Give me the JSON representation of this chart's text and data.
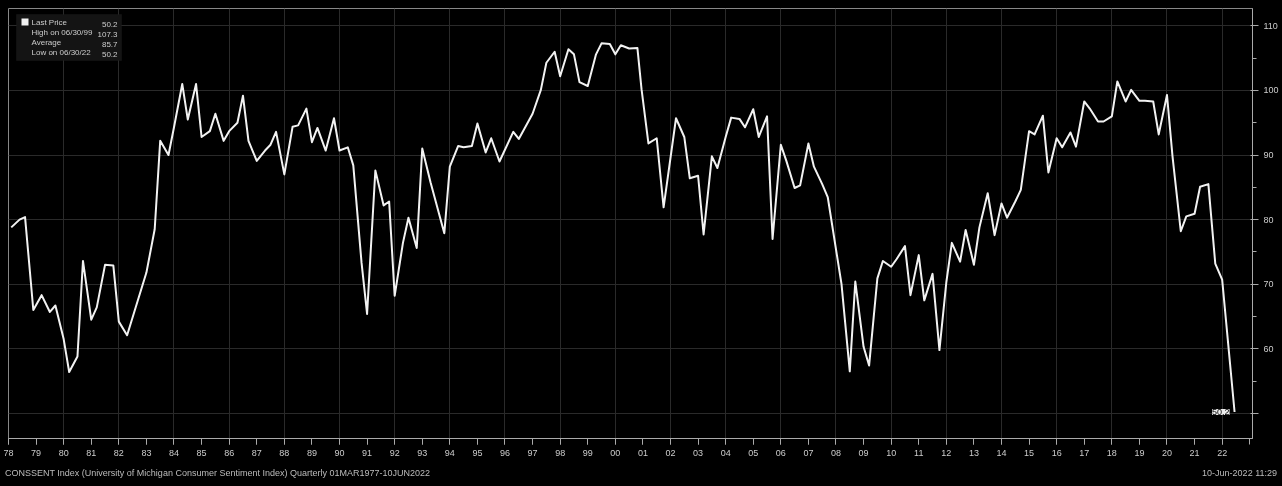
{
  "chart_data": {
    "type": "line",
    "x": [
      1978.1,
      1978.4,
      1978.6,
      1978.9,
      1979.2,
      1979.5,
      1979.7,
      1980.0,
      1980.2,
      1980.5,
      1980.7,
      1981.0,
      1981.2,
      1981.5,
      1981.8,
      1982.0,
      1982.3,
      1983.0,
      1983.3,
      1983.5,
      1983.8,
      1984.0,
      1984.3,
      1984.5,
      1984.8,
      1985.0,
      1985.3,
      1985.5,
      1985.8,
      1986.0,
      1986.3,
      1986.5,
      1986.7,
      1987.0,
      1987.3,
      1987.5,
      1987.7,
      1988.0,
      1988.3,
      1988.5,
      1988.8,
      1989.0,
      1989.2,
      1989.5,
      1989.8,
      1990.0,
      1990.3,
      1990.5,
      1990.8,
      1991.0,
      1991.3,
      1991.6,
      1991.8,
      1992.0,
      1992.3,
      1992.5,
      1992.8,
      1993.0,
      1993.3,
      1993.8,
      1994.0,
      1994.3,
      1994.5,
      1994.8,
      1995.0,
      1995.3,
      1995.5,
      1995.8,
      1996.3,
      1996.5,
      1997.0,
      1997.3,
      1997.5,
      1997.8,
      1998.0,
      1998.3,
      1998.5,
      1998.7,
      1999.0,
      1999.3,
      1999.5,
      1999.8,
      2000.0,
      2000.2,
      2000.5,
      2000.8,
      2000.95,
      2001.2,
      2001.5,
      2001.75,
      2002.2,
      2002.5,
      2002.7,
      2003.0,
      2003.2,
      2003.5,
      2003.7,
      2004.0,
      2004.2,
      2004.5,
      2004.7,
      2005.0,
      2005.2,
      2005.5,
      2005.7,
      2006.0,
      2006.2,
      2006.5,
      2006.7,
      2007.0,
      2007.2,
      2007.5,
      2007.7,
      2008.2,
      2008.5,
      2008.7,
      2009.0,
      2009.2,
      2009.5,
      2009.7,
      2010.0,
      2010.2,
      2010.5,
      2010.7,
      2011.0,
      2011.2,
      2011.5,
      2011.75,
      2012.0,
      2012.2,
      2012.5,
      2012.7,
      2013.0,
      2013.2,
      2013.5,
      2013.75,
      2014.0,
      2014.2,
      2014.5,
      2014.7,
      2015.0,
      2015.2,
      2015.5,
      2015.7,
      2016.0,
      2016.2,
      2016.5,
      2016.7,
      2017.0,
      2017.2,
      2017.5,
      2017.7,
      2018.0,
      2018.2,
      2018.5,
      2018.7,
      2019.0,
      2019.2,
      2019.5,
      2019.7,
      2020.0,
      2020.2,
      2020.5,
      2020.7,
      2021.0,
      2021.2,
      2021.5,
      2021.75,
      2022.0,
      2022.45
    ],
    "series": [
      {
        "name": "Last Price",
        "color": "#f2f2f2",
        "values": [
          78.8,
          80.0,
          80.4,
          66.0,
          68.3,
          65.7,
          66.7,
          61.5,
          56.4,
          58.8,
          73.6,
          64.5,
          66.4,
          73.0,
          72.9,
          64.2,
          62.1,
          71.8,
          78.5,
          92.2,
          90.0,
          94.3,
          101.0,
          95.5,
          101.0,
          92.8,
          93.7,
          96.4,
          92.2,
          93.7,
          95.0,
          99.2,
          92.2,
          89.1,
          90.7,
          91.6,
          93.6,
          87.0,
          94.4,
          94.6,
          97.2,
          92.0,
          94.2,
          90.7,
          95.7,
          90.7,
          91.2,
          88.4,
          73.3,
          65.4,
          87.6,
          82.2,
          82.8,
          68.2,
          76.4,
          80.3,
          75.6,
          91.0,
          85.8,
          77.9,
          88.2,
          91.4,
          91.2,
          91.4,
          94.9,
          90.4,
          92.6,
          89.0,
          93.6,
          92.5,
          96.4,
          100.1,
          104.3,
          106.0,
          102.2,
          106.4,
          105.6,
          101.3,
          100.7,
          105.6,
          107.3,
          107.2,
          105.6,
          107.0,
          106.5,
          106.6,
          100.2,
          91.8,
          92.6,
          81.9,
          95.7,
          92.8,
          86.4,
          86.8,
          77.7,
          89.8,
          88.0,
          92.8,
          95.8,
          95.6,
          94.3,
          97.1,
          92.8,
          96.0,
          77.0,
          91.6,
          89.1,
          84.9,
          85.3,
          91.8,
          88.2,
          85.5,
          83.5,
          70.0,
          56.5,
          70.4,
          60.3,
          57.4,
          70.9,
          73.6,
          72.7,
          73.9,
          75.9,
          68.3,
          74.5,
          67.5,
          71.6,
          59.8,
          70.3,
          76.4,
          73.5,
          78.4,
          73.0,
          78.8,
          84.1,
          77.6,
          82.5,
          80.3,
          82.8,
          84.6,
          93.7,
          93.2,
          96.1,
          87.3,
          92.6,
          91.2,
          93.5,
          91.3,
          98.3,
          97.2,
          95.2,
          95.2,
          96.0,
          101.4,
          98.3,
          100.1,
          98.4,
          98.4,
          98.3,
          93.2,
          99.3,
          89.8,
          78.2,
          80.5,
          80.9,
          85.1,
          85.5,
          73.2,
          70.7,
          50.2
        ]
      }
    ],
    "xlim": [
      1978.0,
      2023.1
    ],
    "xticks": [
      {
        "value": 1978,
        "label": "78"
      },
      {
        "value": 1979,
        "label": "79"
      },
      {
        "value": 1980,
        "label": "80"
      },
      {
        "value": 1981,
        "label": "81"
      },
      {
        "value": 1982,
        "label": "82"
      },
      {
        "value": 1983,
        "label": "83"
      },
      {
        "value": 1984,
        "label": "84"
      },
      {
        "value": 1985,
        "label": "85"
      },
      {
        "value": 1986,
        "label": "86"
      },
      {
        "value": 1987,
        "label": "87"
      },
      {
        "value": 1988,
        "label": "88"
      },
      {
        "value": 1989,
        "label": "89"
      },
      {
        "value": 1990,
        "label": "90"
      },
      {
        "value": 1991,
        "label": "91"
      },
      {
        "value": 1992,
        "label": "92"
      },
      {
        "value": 1993,
        "label": "93"
      },
      {
        "value": 1994,
        "label": "94"
      },
      {
        "value": 1995,
        "label": "95"
      },
      {
        "value": 1996,
        "label": "96"
      },
      {
        "value": 1997,
        "label": "97"
      },
      {
        "value": 1998,
        "label": "98"
      },
      {
        "value": 1999,
        "label": "99"
      },
      {
        "value": 2000,
        "label": "00"
      },
      {
        "value": 2001,
        "label": "01"
      },
      {
        "value": 2002,
        "label": "02"
      },
      {
        "value": 2003,
        "label": "03"
      },
      {
        "value": 2004,
        "label": "04"
      },
      {
        "value": 2005,
        "label": "05"
      },
      {
        "value": 2006,
        "label": "06"
      },
      {
        "value": 2007,
        "label": "07"
      },
      {
        "value": 2008,
        "label": "08"
      },
      {
        "value": 2009,
        "label": "09"
      },
      {
        "value": 2010,
        "label": "10"
      },
      {
        "value": 2011,
        "label": "11"
      },
      {
        "value": 2012,
        "label": "12"
      },
      {
        "value": 2013,
        "label": "13"
      },
      {
        "value": 2014,
        "label": "14"
      },
      {
        "value": 2015,
        "label": "15"
      },
      {
        "value": 2016,
        "label": "16"
      },
      {
        "value": 2017,
        "label": "17"
      },
      {
        "value": 2018,
        "label": "18"
      },
      {
        "value": 2019,
        "label": "19"
      },
      {
        "value": 2020,
        "label": "20"
      },
      {
        "value": 2021,
        "label": "21"
      },
      {
        "value": 2022,
        "label": "22"
      }
    ],
    "ylim": [
      46.1,
      112.7
    ],
    "yticks": [
      {
        "value": 50,
        "label": null
      },
      60,
      70,
      80,
      90,
      100,
      110
    ],
    "grid": true,
    "legend": "top left",
    "annotations": [
      "50.2",
      "High on 06/30/99",
      "107.3",
      "Average",
      "85.7",
      "Low on 06/30/22",
      "50.2",
      "CONSSENT Index (University of Michigan Consumer Sentiment Index) Quarterly 01MAR1977-10JUN2022",
      "10-Jun-2022 11:29",
      {
        "text": "50.2",
        "x": 2022.45,
        "y": 50.2
      }
    ]
  }
}
